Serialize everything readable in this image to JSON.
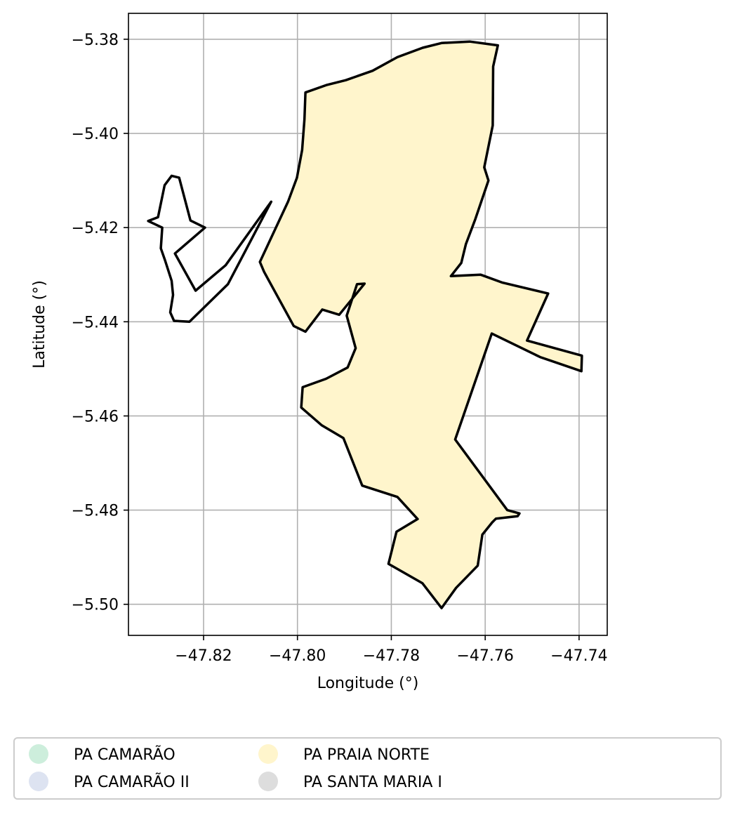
{
  "chart_data": {
    "type": "map",
    "xlabel": "Longitude (°)",
    "ylabel": "Latitude (°)",
    "xlim": [
      -47.836,
      -47.734
    ],
    "ylim": [
      -5.5066,
      -5.3745
    ],
    "grid": true,
    "x_ticks": [
      {
        "value": -47.82,
        "label": "−47.82"
      },
      {
        "value": -47.8,
        "label": "−47.80"
      },
      {
        "value": -47.78,
        "label": "−47.78"
      },
      {
        "value": -47.76,
        "label": "−47.76"
      },
      {
        "value": -47.74,
        "label": "−47.74"
      }
    ],
    "y_ticks": [
      {
        "value": -5.38,
        "label": "−5.38"
      },
      {
        "value": -5.4,
        "label": "−5.40"
      },
      {
        "value": -5.42,
        "label": "−5.42"
      },
      {
        "value": -5.44,
        "label": "−5.44"
      },
      {
        "value": -5.46,
        "label": "−5.46"
      },
      {
        "value": -5.48,
        "label": "−5.48"
      },
      {
        "value": -5.5,
        "label": "−5.50"
      }
    ],
    "legend": {
      "placement": "bottom",
      "columns": 3,
      "entries": [
        {
          "label": "PA CAMARÃO",
          "color": "#cdeedc"
        },
        {
          "label": "PA CAMARÃO II",
          "color": "#dde3f1"
        },
        {
          "label": "PA PRAIA NORTE",
          "color": "#fff5cc"
        },
        {
          "label": "PA SANTA MARIA I",
          "color": "#dddddd"
        }
      ]
    },
    "regions": [
      {
        "legend_label": "PA PRAIA NORTE",
        "fill": "#fff5cc",
        "outline": "#000000",
        "boundary": [
          [
            -47.7983,
            -5.3913
          ],
          [
            -47.7937,
            -5.3897
          ],
          [
            -47.7897,
            -5.3887
          ],
          [
            -47.784,
            -5.3867
          ],
          [
            -47.7787,
            -5.3838
          ],
          [
            -47.7733,
            -5.3818
          ],
          [
            -47.7693,
            -5.3808
          ],
          [
            -47.7633,
            -5.3805
          ],
          [
            -47.7573,
            -5.3813
          ],
          [
            -47.7583,
            -5.3858
          ],
          [
            -47.7584,
            -5.3983
          ],
          [
            -47.7602,
            -5.4072
          ],
          [
            -47.7593,
            -5.41
          ],
          [
            -47.7621,
            -5.4182
          ],
          [
            -47.7641,
            -5.4235
          ],
          [
            -47.7651,
            -5.4275
          ],
          [
            -47.7673,
            -5.4303
          ],
          [
            -47.761,
            -5.43
          ],
          [
            -47.7563,
            -5.4317
          ],
          [
            -47.7466,
            -5.434
          ],
          [
            -47.7511,
            -5.444
          ],
          [
            -47.7394,
            -5.4472
          ],
          [
            -47.7395,
            -5.4505
          ],
          [
            -47.7483,
            -5.4475
          ],
          [
            -47.7586,
            -5.4425
          ],
          [
            -47.7664,
            -5.465
          ],
          [
            -47.7553,
            -5.48
          ],
          [
            -47.7527,
            -5.4807
          ],
          [
            -47.7531,
            -5.4813
          ],
          [
            -47.7577,
            -5.4818
          ],
          [
            -47.7585,
            -5.4826
          ],
          [
            -47.7606,
            -5.4852
          ],
          [
            -47.7616,
            -5.4918
          ],
          [
            -47.7662,
            -5.4965
          ],
          [
            -47.7693,
            -5.5008
          ],
          [
            -47.7734,
            -5.4955
          ],
          [
            -47.7806,
            -5.4914
          ],
          [
            -47.7789,
            -5.4846
          ],
          [
            -47.7744,
            -5.4819
          ],
          [
            -47.7787,
            -5.4772
          ],
          [
            -47.7862,
            -5.4748
          ],
          [
            -47.7902,
            -5.4647
          ],
          [
            -47.7948,
            -5.462
          ],
          [
            -47.7992,
            -5.4582
          ],
          [
            -47.7989,
            -5.4539
          ],
          [
            -47.7939,
            -5.4521
          ],
          [
            -47.7893,
            -5.4497
          ],
          [
            -47.7876,
            -5.4456
          ],
          [
            -47.7895,
            -5.4387
          ],
          [
            -47.7873,
            -5.432
          ],
          [
            -47.7857,
            -5.4319
          ],
          [
            -47.7911,
            -5.4385
          ],
          [
            -47.7947,
            -5.4374
          ],
          [
            -47.7983,
            -5.4421
          ],
          [
            -47.8008,
            -5.4409
          ],
          [
            -47.8071,
            -5.4294
          ],
          [
            -47.808,
            -5.4273
          ],
          [
            -47.802,
            -5.4145
          ],
          [
            -47.8001,
            -5.4094
          ],
          [
            -47.799,
            -5.4035
          ],
          [
            -47.7985,
            -5.397
          ],
          [
            -47.7983,
            -5.3913
          ]
        ]
      }
    ],
    "boundaries": [
      {
        "outline": "#000000",
        "points": [
          [
            -47.823,
            -5.44
          ],
          [
            -47.8148,
            -5.432
          ],
          [
            -47.8056,
            -5.4145
          ],
          [
            -47.8153,
            -5.428
          ],
          [
            -47.8217,
            -5.4334
          ],
          [
            -47.8261,
            -5.4255
          ],
          [
            -47.8197,
            -5.42
          ],
          [
            -47.8228,
            -5.4185
          ],
          [
            -47.8252,
            -5.4094
          ],
          [
            -47.8268,
            -5.409
          ],
          [
            -47.8283,
            -5.411
          ],
          [
            -47.8297,
            -5.4178
          ],
          [
            -47.8318,
            -5.4186
          ],
          [
            -47.8288,
            -5.42
          ],
          [
            -47.8291,
            -5.4244
          ],
          [
            -47.8282,
            -5.427
          ],
          [
            -47.8268,
            -5.4313
          ],
          [
            -47.8265,
            -5.4343
          ],
          [
            -47.8271,
            -5.438
          ],
          [
            -47.8263,
            -5.4398
          ],
          [
            -47.823,
            -5.44
          ]
        ]
      }
    ]
  }
}
